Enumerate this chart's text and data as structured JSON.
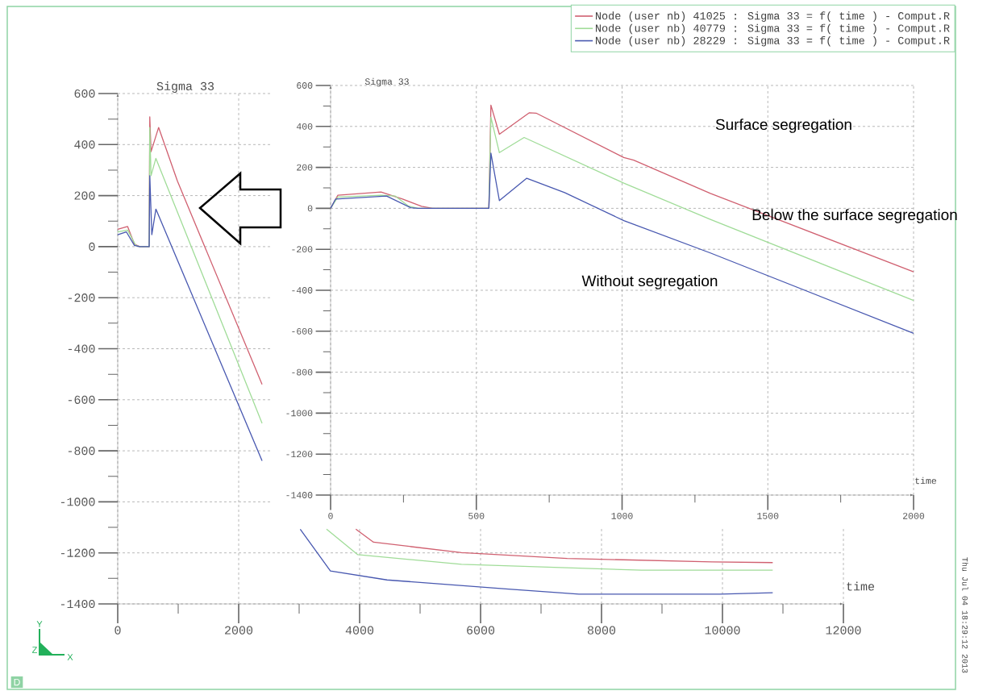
{
  "chart_data": [
    {
      "type": "line",
      "title": "Sigma 33",
      "xlabel": "time",
      "xlim": [
        0,
        12000
      ],
      "ylim": [
        -1400,
        600
      ],
      "xticks": [
        0,
        2000,
        4000,
        6000,
        8000,
        10000,
        12000
      ],
      "yticks": [
        -1400,
        -1200,
        -1000,
        -800,
        -600,
        -400,
        -200,
        0,
        200,
        400,
        600
      ],
      "grid": true,
      "legend": "top right",
      "annotations": [
        "Thu Jul 04 18:29:12 2013",
        "D",
        "Y",
        "Z",
        "X"
      ],
      "series": [
        {
          "name": "Node (user nb) 41025 : Sigma 33 = f( time ) -  Comput.R",
          "color": "#d06070",
          "x": [
            0,
            164,
            276,
            364,
            520,
            530,
            551,
            676,
            987,
            2387,
            2700,
            3937,
            4230,
            5685,
            7433,
            9827,
            10831
          ],
          "values": [
            68,
            79,
            10,
            0,
            0,
            509,
            372,
            467,
            257,
            -540,
            null,
            -1107,
            -1158,
            -1199,
            -1222,
            -1235,
            -1238
          ]
        },
        {
          "name": "Node (user nb) 40779 : Sigma 33 = f( time ) -  Comput.R",
          "color": "#a0dc98",
          "x": [
            0,
            164,
            298,
            364,
            520,
            530,
            551,
            631,
            2387,
            2700,
            3453,
            3970,
            5685,
            8660,
            10831
          ],
          "values": [
            58,
            65,
            5,
            0,
            0,
            467,
            278,
            346,
            -692,
            null,
            -1107,
            -1207,
            -1245,
            -1268,
            -1268
          ]
        },
        {
          "name": "Node (user nb) 28229 : Sigma 33 = f( time ) -  Comput.R",
          "color": "#4858b0",
          "x": [
            0,
            142,
            276,
            364,
            520,
            530,
            564,
            631,
            1164,
            2387,
            2700,
            3018,
            3517,
            4453,
            6463,
            7627,
            9957,
            10831
          ],
          "values": [
            47,
            58,
            5,
            0,
            0,
            278,
            47,
            147,
            -152,
            -839,
            null,
            -1107,
            -1271,
            -1306,
            -1342,
            -1362,
            -1362,
            -1356
          ]
        }
      ]
    },
    {
      "type": "line",
      "title": "Sigma 33",
      "xlabel": "time",
      "xlim": [
        0,
        2000
      ],
      "ylim": [
        -1400,
        600
      ],
      "xticks": [
        0,
        500,
        1000,
        1500,
        2000
      ],
      "yticks": [
        -1400,
        -1200,
        -1000,
        -800,
        -600,
        -400,
        -200,
        0,
        200,
        400,
        600
      ],
      "grid": true,
      "annotations": [
        "Surface segregation",
        "Below the surface segregation",
        "Without segregation"
      ],
      "series": [
        {
          "color": "#d06070",
          "x": [
            0,
            25,
            173,
            247,
            312,
            350,
            543,
            550,
            579,
            682,
            705,
            1006,
            1040,
            1303,
            2000
          ],
          "values": [
            0,
            64,
            80,
            45,
            10,
            0,
            0,
            504,
            362,
            467,
            465,
            248,
            235,
            73,
            -310
          ]
        },
        {
          "color": "#a0dc98",
          "x": [
            0,
            25,
            173,
            222,
            266,
            300,
            543,
            550,
            579,
            664,
            1006,
            1303,
            2000
          ],
          "values": [
            0,
            55,
            64,
            60,
            12,
            0,
            0,
            445,
            272,
            346,
            123,
            -54,
            -450
          ]
        },
        {
          "color": "#4858b0",
          "x": [
            0,
            17,
            192,
            275,
            300,
            543,
            550,
            579,
            673,
            803,
            1006,
            1303,
            2000
          ],
          "values": [
            0,
            45,
            60,
            3,
            0,
            0,
            270,
            38,
            147,
            77,
            -60,
            -218,
            -610
          ]
        }
      ]
    }
  ]
}
